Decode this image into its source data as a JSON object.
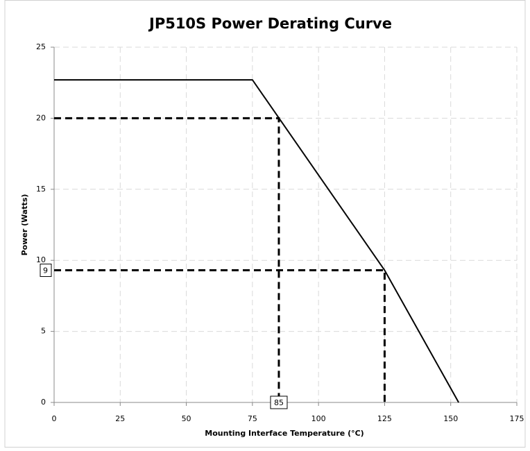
{
  "chart_data": {
    "type": "line",
    "title": "JP510S Power Derating Curve",
    "x_label": "Mounting Interface Temperature (°C)",
    "y_label": "Power (Watts)",
    "xlim": [
      0,
      175
    ],
    "xticks": [
      0,
      25,
      50,
      75,
      100,
      125,
      150,
      175
    ],
    "ylim": [
      0,
      25
    ],
    "yticks": [
      0,
      5,
      10,
      15,
      20,
      25
    ],
    "grid": true,
    "series": [
      {
        "color": "#000000",
        "dashed": false,
        "x": [
          0,
          75,
          125,
          153
        ],
        "values": [
          22.7,
          22.7,
          9.3,
          0
        ]
      },
      {
        "color": "#000000",
        "dashed": true,
        "x": [
          0,
          85,
          85
        ],
        "values": [
          20,
          20,
          0
        ]
      },
      {
        "color": "#000000",
        "dashed": true,
        "x": [
          0,
          125,
          125
        ],
        "values": [
          9.3,
          9.3,
          0
        ]
      }
    ],
    "annotations": [
      {
        "text": "9",
        "axis": "y",
        "at": 9.3
      },
      {
        "text": "85",
        "axis": "x",
        "at": 85
      }
    ]
  }
}
